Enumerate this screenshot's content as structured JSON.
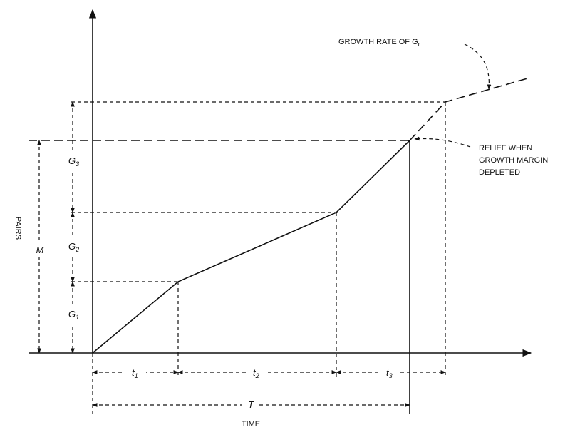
{
  "labels": {
    "growth_rate": {
      "text": "GROWTH RATE OF G",
      "sub": "r"
    },
    "relief": [
      "RELIEF WHEN",
      "GROWTH MARGIN",
      "DEPLETED"
    ],
    "y_axis": "PAIRS",
    "x_axis": "TIME",
    "m": "M",
    "g3": {
      "text": "G",
      "sub": "3"
    },
    "g2": {
      "text": "G",
      "sub": "2"
    },
    "g1": {
      "text": "G",
      "sub": "1"
    },
    "t1": {
      "text": "t",
      "sub": "1"
    },
    "t2": {
      "text": "t",
      "sub": "2"
    },
    "t3": {
      "text": "t",
      "sub": "3"
    },
    "total": "T"
  }
}
